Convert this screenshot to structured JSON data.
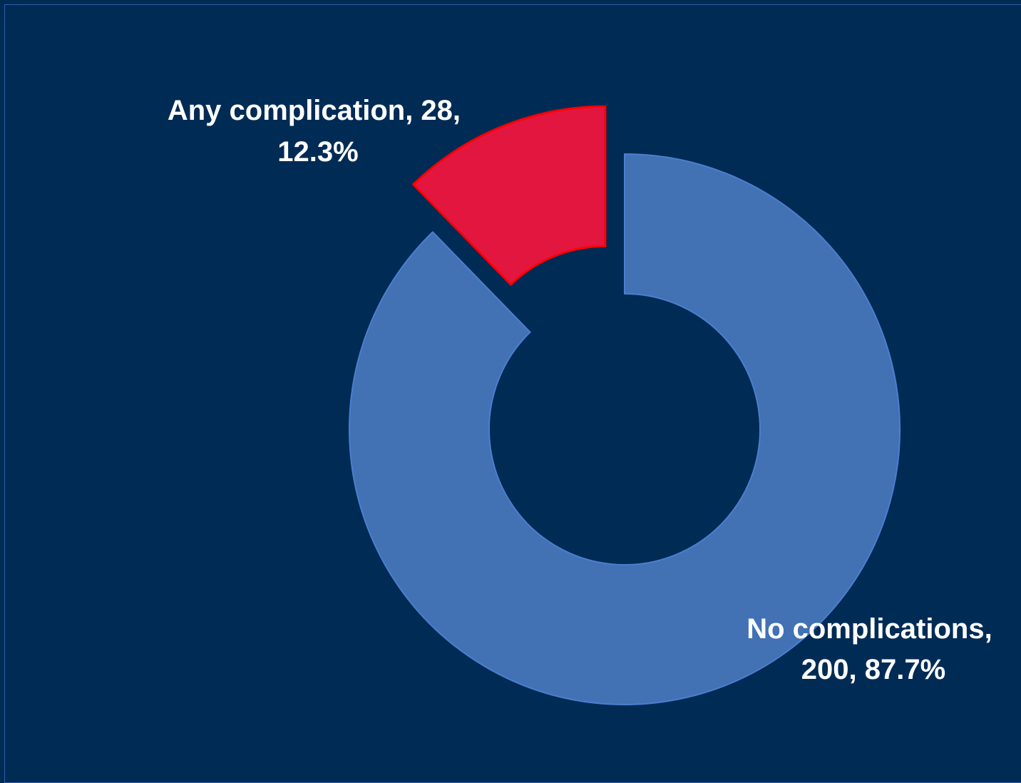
{
  "chart_data": {
    "type": "pie",
    "subtype": "donut",
    "title": "",
    "legend": "none",
    "colors": {
      "background": "#002b55",
      "frame": "#2f5fa8",
      "label_text": "#ffffff"
    },
    "slices": [
      {
        "name": "No complications",
        "value": 200,
        "percent": "87.7%",
        "label_line1": "No complications,",
        "label_line2": "200, 87.7%",
        "color": "#4271b4",
        "stroke": "#4a7fd0",
        "exploded": false
      },
      {
        "name": "Any complication",
        "value": 28,
        "percent": "12.3%",
        "label_line1": "Any complication, 28,",
        "label_line2": "12.3%",
        "color": "#e31640",
        "stroke": "#ff0000",
        "exploded": true
      }
    ]
  }
}
